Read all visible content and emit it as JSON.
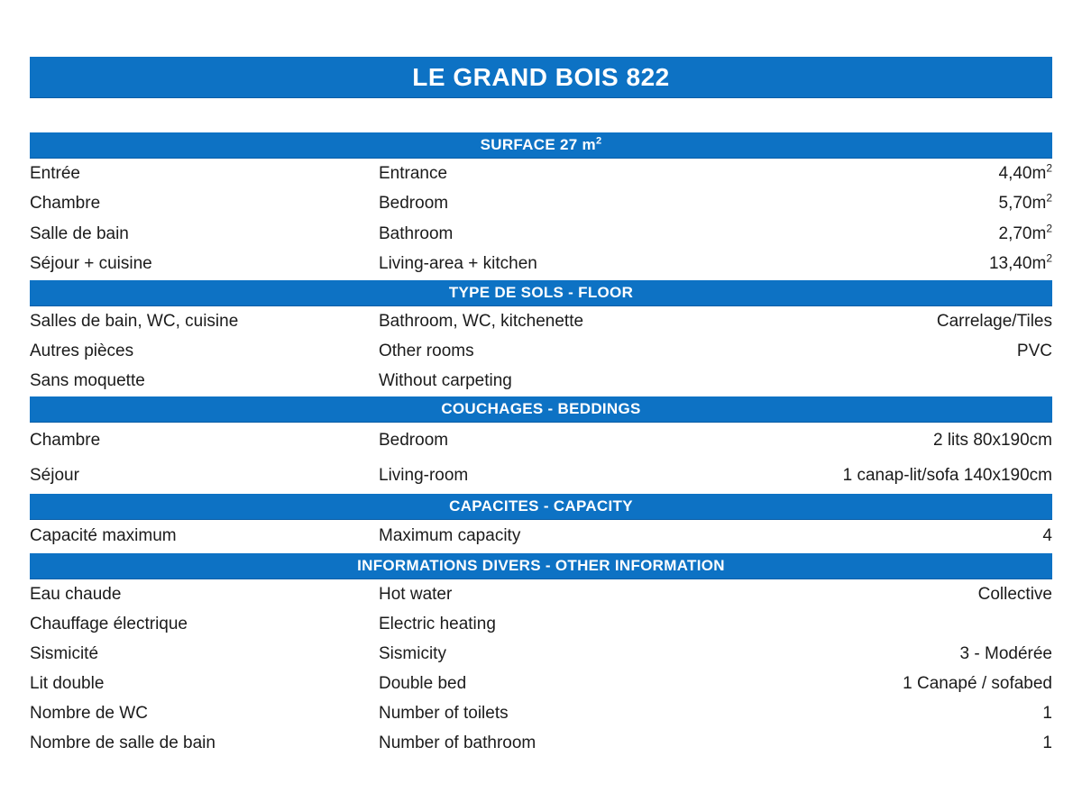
{
  "accent_color": "#0d72c4",
  "title": "LE GRAND BOIS 822",
  "sections": [
    {
      "header_text": "SURFACE 27 m",
      "header_sup": "2",
      "rows": [
        {
          "fr": "Entrée",
          "en": "Entrance",
          "value": "4,40m",
          "value_sup": "2"
        },
        {
          "fr": "Chambre",
          "en": "Bedroom",
          "value": "5,70m",
          "value_sup": "2"
        },
        {
          "fr": "Salle de bain",
          "en": "Bathroom",
          "value": "2,70m",
          "value_sup": "2"
        },
        {
          "fr": "Séjour + cuisine",
          "en": "Living-area + kitchen",
          "value": "13,40m",
          "value_sup": "2"
        }
      ]
    },
    {
      "header_text": "TYPE DE SOLS - FLOOR",
      "rows": [
        {
          "fr": "Salles de bain, WC, cuisine",
          "en": "Bathroom, WC, kitchenette",
          "value": "Carrelage/Tiles"
        },
        {
          "fr": "Autres pièces",
          "en": "Other rooms",
          "value": "PVC"
        },
        {
          "fr": "Sans moquette",
          "en": "Without carpeting",
          "value": ""
        }
      ]
    },
    {
      "header_text": "COUCHAGES - BEDDINGS",
      "rows": [
        {
          "fr": "Chambre",
          "en": "Bedroom",
          "value": "2 lits 80x190cm"
        },
        {
          "fr": "Séjour",
          "en": "Living-room",
          "value": "1 canap-lit/sofa 140x190cm"
        }
      ]
    },
    {
      "header_text": "CAPACITES - CAPACITY",
      "rows": [
        {
          "fr": "Capacité maximum",
          "en": "Maximum capacity",
          "value": "4"
        }
      ]
    },
    {
      "header_text": "INFORMATIONS DIVERS - OTHER INFORMATION",
      "rows": [
        {
          "fr": "Eau chaude",
          "en": "Hot water",
          "value": "Collective"
        },
        {
          "fr": "Chauffage électrique",
          "en": "Electric heating",
          "value": ""
        },
        {
          "fr": "Sismicité",
          "en": "Sismicity",
          "value": "3 - Modérée"
        },
        {
          "fr": "Lit double",
          "en": "Double bed",
          "value": "1 Canapé / sofabed"
        },
        {
          "fr": "Nombre de WC",
          "en": "Number of toilets",
          "value": "1"
        },
        {
          "fr": "Nombre de salle de bain",
          "en": "Number of bathroom",
          "value": "1"
        }
      ]
    }
  ]
}
